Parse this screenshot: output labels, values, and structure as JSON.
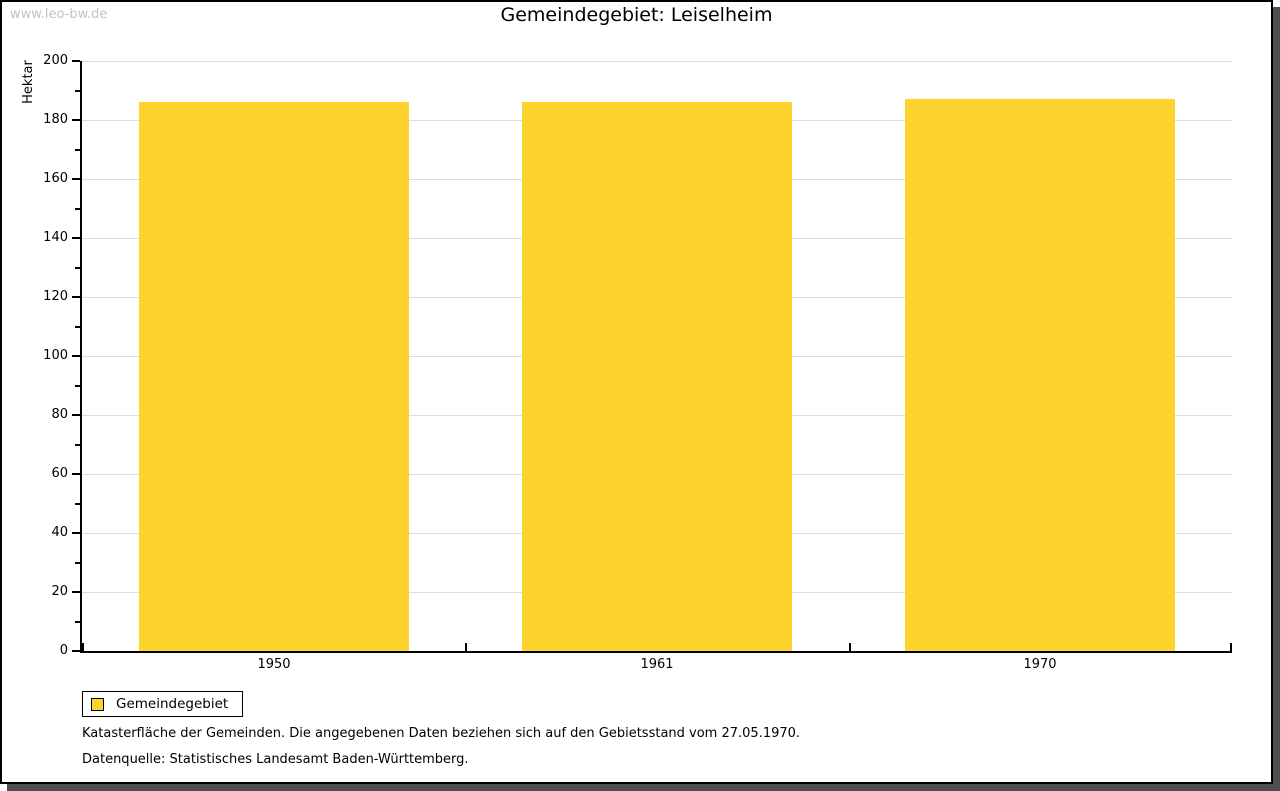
{
  "page": {
    "watermark": "www.leo-bw.de"
  },
  "chart_data": {
    "type": "bar",
    "title": "Gemeindegebiet: Leiselheim",
    "categories": [
      "1950",
      "1961",
      "1970"
    ],
    "series": [
      {
        "name": "Gemeindegebiet",
        "values": [
          186,
          186,
          187
        ]
      }
    ],
    "xlabel": "",
    "ylabel": "Hektar",
    "ylim": [
      0,
      200
    ],
    "ytick_step": 20,
    "yminor_step": 10,
    "grid": true,
    "legend_position": "bottom-left",
    "bar_color": "#FDD32D",
    "grid_color": "#DCDCDC"
  },
  "legend": {
    "items": [
      {
        "label": "Gemeindegebiet",
        "color": "#FDD32D"
      }
    ]
  },
  "footer": {
    "line1": "Katasterfläche der Gemeinden. Die angegebenen Daten beziehen sich auf den Gebietsstand vom 27.05.1970.",
    "line2": "Datenquelle: Statistisches Landesamt Baden-Württemberg."
  }
}
